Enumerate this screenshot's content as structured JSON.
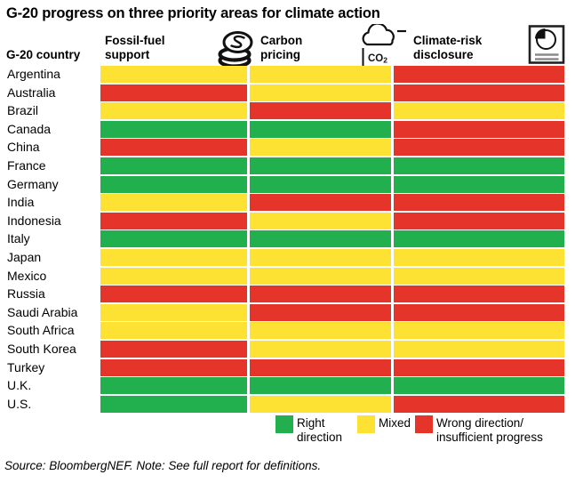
{
  "chart_data": {
    "type": "heatmap",
    "title": "G-20 progress on three priority areas for climate action",
    "row_header": "G-20 country",
    "columns": [
      {
        "label": "Fossil-fuel\nsupport",
        "icon": "coins-icon"
      },
      {
        "label": "Carbon\npricing",
        "icon": "co2-cloud-icon"
      },
      {
        "label": "Climate-risk\ndisclosure",
        "icon": "report-pie-chart-icon"
      }
    ],
    "value_colors": {
      "right": "#21b04d",
      "mixed": "#fde233",
      "wrong": "#e5342a"
    },
    "rows": [
      {
        "country": "Argentina",
        "values": [
          "mixed",
          "mixed",
          "wrong"
        ]
      },
      {
        "country": "Australia",
        "values": [
          "wrong",
          "mixed",
          "wrong"
        ]
      },
      {
        "country": "Brazil",
        "values": [
          "mixed",
          "wrong",
          "mixed"
        ]
      },
      {
        "country": "Canada",
        "values": [
          "right",
          "right",
          "wrong"
        ]
      },
      {
        "country": "China",
        "values": [
          "wrong",
          "mixed",
          "wrong"
        ]
      },
      {
        "country": "France",
        "values": [
          "right",
          "right",
          "right"
        ]
      },
      {
        "country": "Germany",
        "values": [
          "right",
          "right",
          "right"
        ]
      },
      {
        "country": "India",
        "values": [
          "mixed",
          "wrong",
          "wrong"
        ]
      },
      {
        "country": "Indonesia",
        "values": [
          "wrong",
          "mixed",
          "wrong"
        ]
      },
      {
        "country": "Italy",
        "values": [
          "right",
          "right",
          "right"
        ]
      },
      {
        "country": "Japan",
        "values": [
          "mixed",
          "mixed",
          "mixed"
        ]
      },
      {
        "country": "Mexico",
        "values": [
          "mixed",
          "mixed",
          "mixed"
        ]
      },
      {
        "country": "Russia",
        "values": [
          "wrong",
          "wrong",
          "wrong"
        ]
      },
      {
        "country": "Saudi Arabia",
        "values": [
          "mixed",
          "wrong",
          "wrong"
        ]
      },
      {
        "country": "South Africa",
        "values": [
          "mixed",
          "mixed",
          "mixed"
        ]
      },
      {
        "country": "South Korea",
        "values": [
          "wrong",
          "mixed",
          "mixed"
        ]
      },
      {
        "country": "Turkey",
        "values": [
          "wrong",
          "wrong",
          "wrong"
        ]
      },
      {
        "country": "U.K.",
        "values": [
          "right",
          "right",
          "right"
        ]
      },
      {
        "country": "U.S.",
        "values": [
          "right",
          "mixed",
          "wrong"
        ]
      }
    ],
    "legend": [
      {
        "value": "right",
        "label": "Right\ndirection",
        "color": "#21b04d"
      },
      {
        "value": "mixed",
        "label": "Mixed",
        "color": "#fde233"
      },
      {
        "value": "wrong",
        "label": "Wrong direction/\ninsufficient progress",
        "color": "#e5342a"
      }
    ],
    "legend_position": "bottom-right",
    "grid": false
  },
  "source_note": "Source: BloombergNEF. Note: See full report for definitions."
}
